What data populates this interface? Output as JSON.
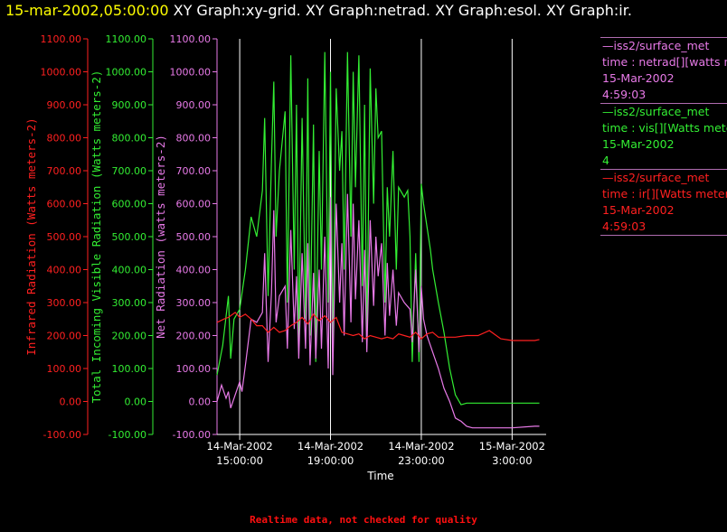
{
  "header": {
    "time_label": "15-mar-2002,05:00:00",
    "graphs_label": "XY Graph:xy-grid.  XY Graph:netrad.  XY Graph:esol.  XY Graph:ir."
  },
  "colors": {
    "background": "#000000",
    "ir": "#ff2020",
    "vis": "#33ee33",
    "net": "#e87ae8",
    "grid": "#ffffff",
    "title_time": "#ffff00"
  },
  "legend": [
    {
      "lines": [
        "—iss2/surface_met",
        "time : netrad[][watts me",
        "15-Mar-2002",
        "4:59:03"
      ],
      "color": "#e87ae8"
    },
    {
      "lines": [
        "—iss2/surface_met",
        "time : vis[][Watts mete",
        "15-Mar-2002",
        "4"
      ],
      "color": "#33ee33"
    },
    {
      "lines": [
        "—iss2/surface_met",
        "time : ir[][Watts meters",
        "15-Mar-2002",
        "4:59:03"
      ],
      "color": "#ff2020"
    }
  ],
  "footnote": "Realtime data, not checked for quality",
  "chart_data": {
    "type": "line",
    "xlabel": "Time",
    "x_tick_labels": [
      [
        "14-Mar-2002",
        "15:00:00"
      ],
      [
        "14-Mar-2002",
        "19:00:00"
      ],
      [
        "14-Mar-2002",
        "23:00:00"
      ],
      [
        "15-Mar-2002",
        "3:00:00"
      ]
    ],
    "x_ticks_hours": [
      15,
      19,
      23,
      27
    ],
    "xlim_hours": [
      14.0,
      28.5
    ],
    "x_unit_note": "hours of 14-Mar-2002",
    "axes": [
      {
        "label": "Infrared Radiation (Watts meters-2)",
        "color": "#ff2020",
        "ylim": [
          -100,
          1100
        ]
      },
      {
        "label": "Total Incoming Visible Radiation (Watts meters-2)",
        "color": "#33ee33",
        "ylim": [
          -100,
          1100
        ]
      },
      {
        "label": "Net Radiation (watts meters-2)",
        "color": "#e87ae8",
        "ylim": [
          -100,
          1100
        ]
      }
    ],
    "y_ticks": [
      -100,
      0,
      100,
      200,
      300,
      400,
      500,
      600,
      700,
      800,
      900,
      1000,
      1100
    ],
    "y_tick_labels": [
      "-100.00",
      "0.00",
      "100.00",
      "200.00",
      "300.00",
      "400.00",
      "500.00",
      "600.00",
      "700.00",
      "800.00",
      "900.00",
      "1000.00",
      "1100.00"
    ],
    "grid": true,
    "series": [
      {
        "key": "vis",
        "color": "#33ee33",
        "x": [
          14.0,
          14.25,
          14.5,
          14.6,
          14.75,
          15.0,
          15.25,
          15.5,
          15.75,
          16.0,
          16.1,
          16.25,
          16.4,
          16.5,
          16.6,
          16.75,
          17.0,
          17.1,
          17.25,
          17.4,
          17.5,
          17.6,
          17.75,
          17.9,
          18.0,
          18.1,
          18.25,
          18.35,
          18.5,
          18.6,
          18.75,
          18.9,
          19.0,
          19.1,
          19.25,
          19.4,
          19.5,
          19.6,
          19.75,
          19.9,
          20.0,
          20.1,
          20.25,
          20.4,
          20.5,
          20.6,
          20.75,
          20.9,
          21.0,
          21.1,
          21.25,
          21.4,
          21.5,
          21.6,
          21.75,
          21.9,
          22.0,
          22.25,
          22.4,
          22.5,
          22.6,
          22.75,
          22.9,
          23.0,
          23.1,
          23.25,
          23.4,
          23.5,
          23.75,
          24.0,
          24.25,
          24.5,
          24.75,
          25.0,
          25.5,
          26.0,
          27.0,
          28.0,
          28.2
        ],
        "y": [
          80,
          170,
          320,
          130,
          250,
          280,
          400,
          560,
          500,
          640,
          860,
          320,
          730,
          970,
          500,
          700,
          880,
          300,
          1050,
          400,
          900,
          180,
          860,
          250,
          980,
          200,
          840,
          120,
          760,
          400,
          1060,
          300,
          1000,
          150,
          950,
          700,
          820,
          400,
          1060,
          500,
          1000,
          650,
          1050,
          350,
          900,
          180,
          1010,
          600,
          950,
          800,
          820,
          300,
          650,
          500,
          760,
          400,
          650,
          620,
          640,
          500,
          120,
          450,
          120,
          660,
          600,
          530,
          460,
          400,
          300,
          210,
          100,
          20,
          -10,
          -5,
          -5,
          -5,
          -5,
          -5,
          -5
        ]
      },
      {
        "key": "net",
        "color": "#e87ae8",
        "x": [
          14.0,
          14.2,
          14.4,
          14.5,
          14.6,
          14.8,
          15.0,
          15.1,
          15.25,
          15.5,
          15.75,
          16.0,
          16.1,
          16.25,
          16.4,
          16.5,
          16.6,
          16.75,
          17.0,
          17.1,
          17.25,
          17.4,
          17.5,
          17.6,
          17.75,
          17.9,
          18.0,
          18.1,
          18.25,
          18.35,
          18.5,
          18.6,
          18.75,
          18.9,
          19.0,
          19.1,
          19.25,
          19.4,
          19.5,
          19.6,
          19.75,
          19.9,
          20.0,
          20.1,
          20.25,
          20.4,
          20.5,
          20.6,
          20.75,
          20.9,
          21.0,
          21.1,
          21.25,
          21.4,
          21.5,
          21.6,
          21.75,
          21.9,
          22.0,
          22.25,
          22.5,
          22.6,
          22.75,
          22.9,
          23.0,
          23.1,
          23.25,
          23.5,
          23.75,
          24.0,
          24.25,
          24.5,
          24.75,
          25.0,
          25.25,
          25.5,
          26.0,
          27.0,
          28.0,
          28.2
        ],
        "y": [
          0,
          50,
          10,
          30,
          -20,
          20,
          60,
          30,
          110,
          250,
          240,
          270,
          450,
          120,
          330,
          580,
          240,
          320,
          350,
          160,
          520,
          220,
          380,
          130,
          450,
          160,
          480,
          110,
          390,
          130,
          400,
          160,
          500,
          100,
          620,
          80,
          600,
          300,
          480,
          200,
          630,
          240,
          600,
          310,
          550,
          180,
          460,
          150,
          550,
          290,
          500,
          380,
          480,
          200,
          420,
          260,
          400,
          230,
          330,
          300,
          280,
          180,
          400,
          150,
          350,
          250,
          200,
          150,
          100,
          40,
          0,
          -50,
          -60,
          -75,
          -80,
          -80,
          -80,
          -80,
          -75,
          -75
        ]
      },
      {
        "key": "ir",
        "color": "#ff2020",
        "x": [
          14.0,
          14.3,
          14.5,
          14.8,
          15.0,
          15.25,
          15.5,
          15.75,
          16.0,
          16.25,
          16.5,
          16.75,
          17.0,
          17.25,
          17.5,
          17.75,
          18.0,
          18.25,
          18.5,
          18.75,
          19.0,
          19.25,
          19.5,
          19.75,
          20.0,
          20.25,
          20.5,
          20.75,
          21.0,
          21.25,
          21.5,
          21.75,
          22.0,
          22.25,
          22.5,
          22.75,
          23.0,
          23.25,
          23.5,
          23.75,
          24.0,
          24.5,
          25.0,
          25.5,
          26.0,
          26.5,
          27.0,
          27.5,
          28.0,
          28.2
        ],
        "y": [
          240,
          250,
          255,
          270,
          255,
          265,
          250,
          230,
          230,
          210,
          225,
          210,
          215,
          230,
          240,
          255,
          235,
          265,
          245,
          260,
          240,
          255,
          210,
          205,
          200,
          205,
          190,
          200,
          195,
          190,
          195,
          190,
          205,
          200,
          195,
          210,
          190,
          205,
          210,
          195,
          195,
          195,
          200,
          200,
          215,
          190,
          185,
          185,
          185,
          188
        ]
      }
    ]
  }
}
